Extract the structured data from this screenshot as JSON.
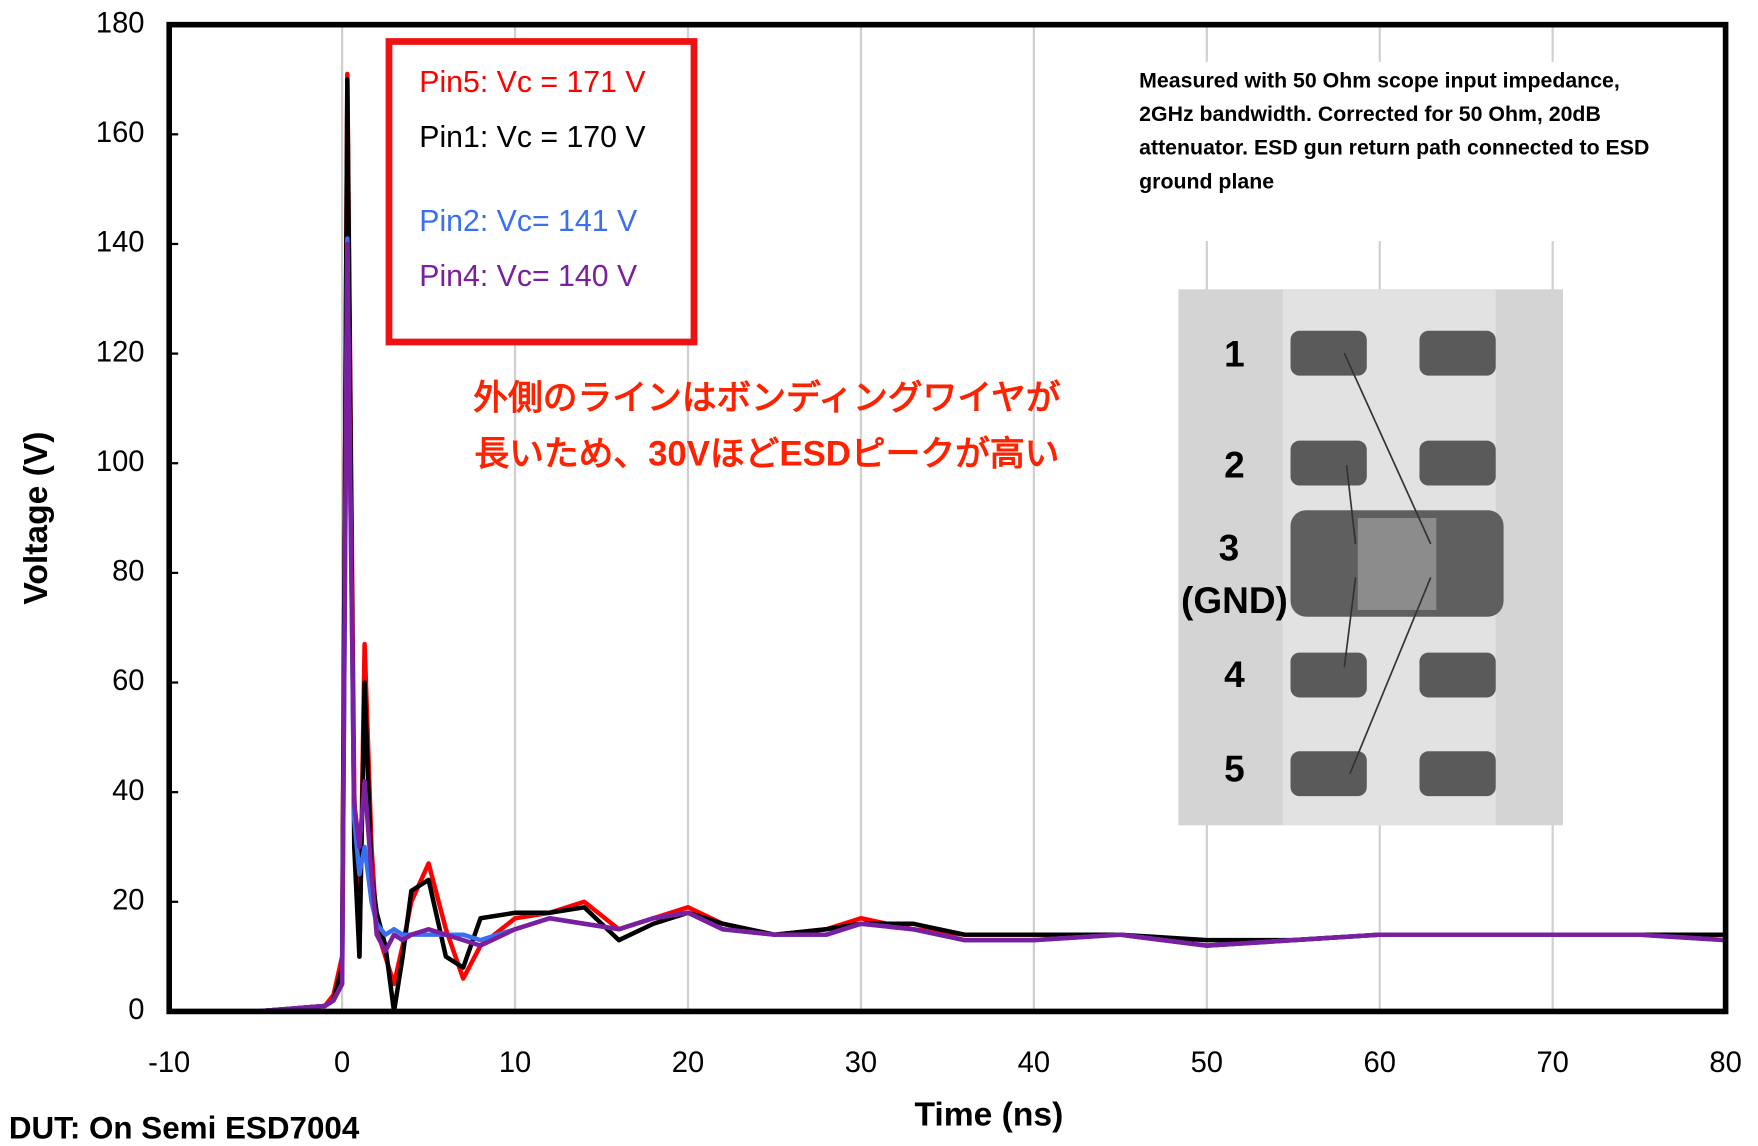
{
  "chart_data": {
    "type": "line",
    "x_label": "Time (ns)",
    "y_label": "Voltage (V)",
    "xlim": [
      -10,
      80
    ],
    "xticks": [
      -10,
      0,
      10,
      20,
      30,
      40,
      50,
      60,
      70,
      80
    ],
    "ylim": [
      0,
      180
    ],
    "yticks": [
      0,
      20,
      40,
      60,
      80,
      100,
      120,
      140,
      160,
      180
    ],
    "grid": true,
    "x": [
      -10,
      -5,
      -1,
      -0.5,
      0,
      0.3,
      0.7,
      1,
      1.3,
      1.7,
      2,
      2.5,
      3,
      3.5,
      4,
      5,
      6,
      7,
      8,
      10,
      12,
      14,
      16,
      18,
      20,
      22,
      25,
      28,
      30,
      33,
      36,
      40,
      45,
      50,
      55,
      60,
      65,
      70,
      75,
      80
    ],
    "series": [
      {
        "name": "Pin5: Vc = 171 V",
        "color": "#ff0000",
        "values": [
          0,
          0,
          1,
          3,
          10,
          171,
          40,
          10,
          67,
          30,
          15,
          10,
          5,
          12,
          20,
          27,
          15,
          6,
          12,
          17,
          18,
          20,
          15,
          17,
          19,
          16,
          14,
          15,
          17,
          15,
          14,
          14,
          14,
          12,
          13,
          14,
          14,
          14,
          14,
          14
        ]
      },
      {
        "name": "Pin1: Vc = 170 V",
        "color": "#000000",
        "values": [
          0,
          0,
          1,
          2,
          8,
          170,
          30,
          10,
          60,
          25,
          18,
          12,
          0,
          10,
          22,
          24,
          10,
          8,
          17,
          18,
          18,
          19,
          13,
          16,
          18,
          16,
          14,
          15,
          16,
          16,
          14,
          14,
          14,
          13,
          13,
          14,
          14,
          14,
          14,
          14
        ]
      },
      {
        "name": "Pin2: Vc= 141 V",
        "color": "#3a6ff0",
        "values": [
          0,
          0,
          1,
          2,
          5,
          141,
          35,
          25,
          30,
          20,
          16,
          14,
          15,
          14,
          14,
          14,
          14,
          14,
          13,
          15,
          17,
          16,
          15,
          17,
          18,
          15,
          14,
          14,
          16,
          15,
          13,
          13,
          14,
          12,
          13,
          14,
          14,
          14,
          14,
          13
        ]
      },
      {
        "name": "Pin4: Vc= 140 V",
        "color": "#7a1fa0",
        "values": [
          0,
          0,
          1,
          2,
          5,
          140,
          38,
          30,
          42,
          25,
          14,
          11,
          14,
          13,
          14,
          15,
          14,
          13,
          12,
          15,
          17,
          16,
          15,
          17,
          18,
          15,
          14,
          14,
          16,
          15,
          13,
          13,
          14,
          12,
          13,
          14,
          14,
          14,
          14,
          13
        ]
      }
    ],
    "note": "Measured with 50 Ohm scope input impedance, 2GHz bandwidth.  Corrected for 50 Ohm, 20dB attenuator. ESD gun return path connected to ESD ground plane",
    "annotation": [
      "外側のラインはボンディングワイヤが",
      "長いため、30VほどESDピークが高い"
    ],
    "footer": "DUT: On Semi ESD7004",
    "chip_labels": [
      "1",
      "2",
      "3",
      "(GND)",
      "4",
      "5"
    ]
  }
}
